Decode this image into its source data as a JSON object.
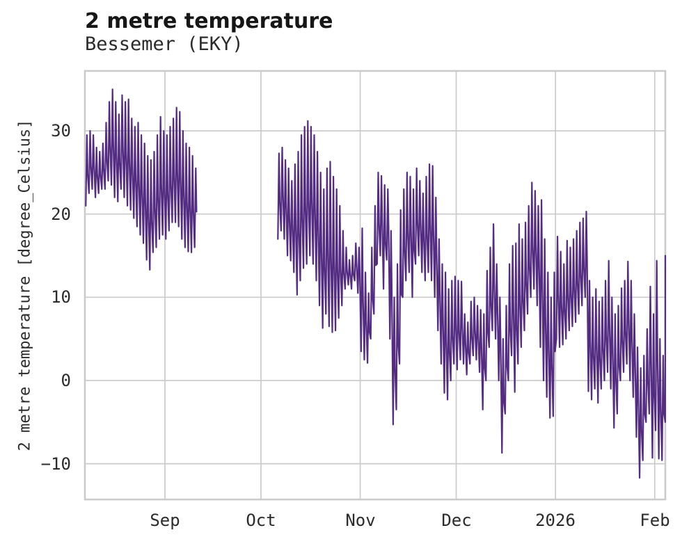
{
  "chart_data": {
    "type": "line",
    "title": "2 metre temperature",
    "subtitle": "Bessemer (EKY)",
    "ylabel": "2 metre temperature [degree_Celsius]",
    "line_color": "#542d82",
    "grid_color": "#cbcbcb",
    "text_color": "#2b2b2b",
    "ylim": [
      -14.3,
      37.2
    ],
    "xlim_days": [
      0,
      181.3
    ],
    "grid": true,
    "legend": false,
    "yticks": [
      {
        "label": "30",
        "value": 30
      },
      {
        "label": "20",
        "value": 20
      },
      {
        "label": "10",
        "value": 10
      },
      {
        "label": "0",
        "value": 0
      },
      {
        "label": "−10",
        "value": -10
      }
    ],
    "xticks": [
      {
        "label": "Sep",
        "day": 25
      },
      {
        "label": "Oct",
        "day": 55
      },
      {
        "label": "Nov",
        "day": 86
      },
      {
        "label": "Dec",
        "day": 116
      },
      {
        "label": "2026",
        "day": 147
      },
      {
        "label": "Feb",
        "day": 178
      }
    ],
    "segments": [
      {
        "start_day": 0,
        "daily_min_max": [
          [
            21,
            29.5
          ],
          [
            22.5,
            30
          ],
          [
            23,
            29.5
          ],
          [
            22,
            28
          ],
          [
            22.5,
            27.5
          ],
          [
            23,
            28.5
          ],
          [
            23,
            31
          ],
          [
            24,
            33.5
          ],
          [
            23.5,
            35
          ],
          [
            22,
            33.5
          ],
          [
            21.5,
            32
          ],
          [
            23,
            34.3
          ],
          [
            22,
            33.5
          ],
          [
            21,
            33.8
          ],
          [
            20.5,
            31.5
          ],
          [
            19.5,
            30.5
          ],
          [
            18.5,
            31
          ],
          [
            17.5,
            29.5
          ],
          [
            16.5,
            28.5
          ],
          [
            14.5,
            27
          ],
          [
            13.3,
            26.5
          ],
          [
            15.4,
            27.5
          ],
          [
            16,
            29.5
          ],
          [
            17,
            31.7
          ],
          [
            17.5,
            30
          ],
          [
            17,
            29.5
          ],
          [
            18,
            30.5
          ],
          [
            19,
            31.5
          ],
          [
            19,
            32.8
          ],
          [
            18.5,
            32.3
          ],
          [
            17,
            30
          ],
          [
            16,
            28.5
          ],
          [
            15.5,
            28
          ],
          [
            15.4,
            27
          ],
          [
            16,
            25.5
          ]
        ]
      },
      {
        "start_day": 60,
        "daily_min_max": [
          [
            17,
            27.3
          ],
          [
            18,
            28
          ],
          [
            17,
            26.5
          ],
          [
            15,
            25.5
          ],
          [
            14.4,
            24
          ],
          [
            13,
            26
          ],
          [
            10.3,
            27.5
          ],
          [
            12,
            29.5
          ],
          [
            13.5,
            30.5
          ],
          [
            14,
            31.2
          ],
          [
            15,
            30.5
          ],
          [
            14,
            29.5
          ],
          [
            12,
            27.5
          ],
          [
            9,
            25
          ],
          [
            6.3,
            23
          ],
          [
            8,
            25.5
          ],
          [
            6.5,
            26.3
          ],
          [
            5.8,
            24.5
          ],
          [
            6,
            23
          ],
          [
            7.5,
            21
          ],
          [
            9,
            18
          ],
          [
            11,
            16
          ],
          [
            11.5,
            14.5
          ],
          [
            11,
            15
          ],
          [
            12,
            16.5
          ],
          [
            10.5,
            16
          ],
          [
            3.5,
            18.3
          ],
          [
            2.5,
            13
          ],
          [
            2.1,
            10.5
          ],
          [
            5,
            16
          ],
          [
            8,
            21
          ],
          [
            14,
            25
          ],
          [
            15,
            24.6
          ],
          [
            11,
            23.5
          ],
          [
            14.5,
            23
          ],
          [
            5,
            18
          ],
          [
            -5.3,
            10
          ],
          [
            -3.5,
            14
          ],
          [
            2,
            20.5
          ],
          [
            10,
            23
          ],
          [
            12,
            25
          ],
          [
            13,
            24.5
          ],
          [
            10,
            23
          ],
          [
            14,
            25.5
          ],
          [
            15,
            24
          ],
          [
            13,
            22.5
          ],
          [
            12,
            24.5
          ],
          [
            13,
            26
          ],
          [
            12,
            25.8
          ],
          [
            10,
            22
          ],
          [
            6,
            17
          ],
          [
            2,
            14
          ],
          [
            -1.5,
            13
          ],
          [
            -2.3,
            11
          ],
          [
            0,
            12
          ],
          [
            2,
            12.5
          ],
          [
            1.3,
            12
          ],
          [
            2.5,
            11.9
          ],
          [
            2,
            8
          ],
          [
            0.7,
            7
          ],
          [
            2,
            9.5
          ],
          [
            3,
            10
          ],
          [
            2.5,
            9
          ],
          [
            1,
            8.5
          ],
          [
            -3.5,
            8
          ],
          [
            0,
            13.2
          ],
          [
            4,
            16
          ],
          [
            6,
            18.8
          ],
          [
            5,
            14
          ],
          [
            0,
            10
          ],
          [
            -8.7,
            5
          ],
          [
            -4,
            9
          ],
          [
            0,
            14
          ],
          [
            3,
            16.2
          ],
          [
            -1.4,
            16.5
          ],
          [
            2,
            18.8
          ],
          [
            4,
            17
          ],
          [
            6,
            19
          ],
          [
            8,
            21
          ],
          [
            10,
            23.8
          ],
          [
            11,
            22.8
          ],
          [
            9,
            21
          ],
          [
            4,
            21.7
          ],
          [
            0,
            17
          ],
          [
            -2,
            13
          ],
          [
            -4.5,
            10
          ],
          [
            -4.3,
            13
          ],
          [
            5,
            17.3
          ],
          [
            4,
            15.5
          ],
          [
            4.3,
            14
          ],
          [
            5,
            16.8
          ],
          [
            6,
            16
          ],
          [
            6.5,
            17
          ],
          [
            7,
            18
          ],
          [
            8,
            19
          ],
          [
            9,
            19.5
          ],
          [
            10,
            20.3
          ],
          [
            -1.3,
            12
          ],
          [
            -2.3,
            10
          ],
          [
            -1,
            11
          ],
          [
            -2.7,
            9.5
          ],
          [
            -1,
            10
          ],
          [
            0,
            12
          ],
          [
            1,
            14.4
          ],
          [
            -1,
            10
          ],
          [
            -5.7,
            8
          ],
          [
            -4,
            9
          ],
          [
            0,
            11.1
          ],
          [
            1,
            12
          ],
          [
            2,
            14.3
          ],
          [
            0,
            12
          ],
          [
            -2,
            8
          ],
          [
            -6.8,
            4
          ],
          [
            -11.7,
            1.5
          ],
          [
            -9.6,
            3
          ],
          [
            -5,
            6.2
          ],
          [
            -4,
            11.3
          ],
          [
            -9.3,
            8
          ],
          [
            -6,
            14.4
          ],
          [
            -9.4,
            5
          ],
          [
            -9.6,
            3
          ],
          [
            -5,
            15
          ]
        ]
      }
    ]
  }
}
